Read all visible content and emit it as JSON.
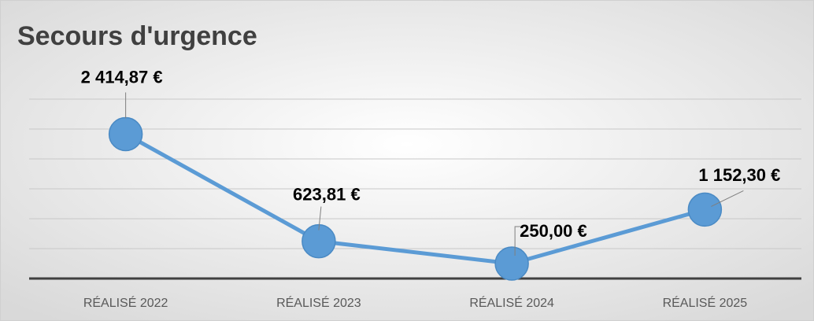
{
  "chart_data": {
    "type": "line",
    "title": "Secours d'urgence",
    "categories": [
      "RÉALISÉ 2022",
      "RÉALISÉ 2023",
      "RÉALISÉ 2024",
      "RÉALISÉ 2025"
    ],
    "series": [
      {
        "name": "Secours d'urgence",
        "color": "#5b9bd5",
        "values": [
          2414.87,
          623.81,
          250.0,
          1152.3
        ],
        "value_labels": [
          "2 414,87 €",
          "623,81 €",
          "250,00 €",
          "1 152,30 €"
        ]
      }
    ],
    "ylim": [
      0,
      3000
    ],
    "yticks": [
      0,
      500,
      1000,
      1500,
      2000,
      2500,
      3000
    ],
    "grid": true
  }
}
